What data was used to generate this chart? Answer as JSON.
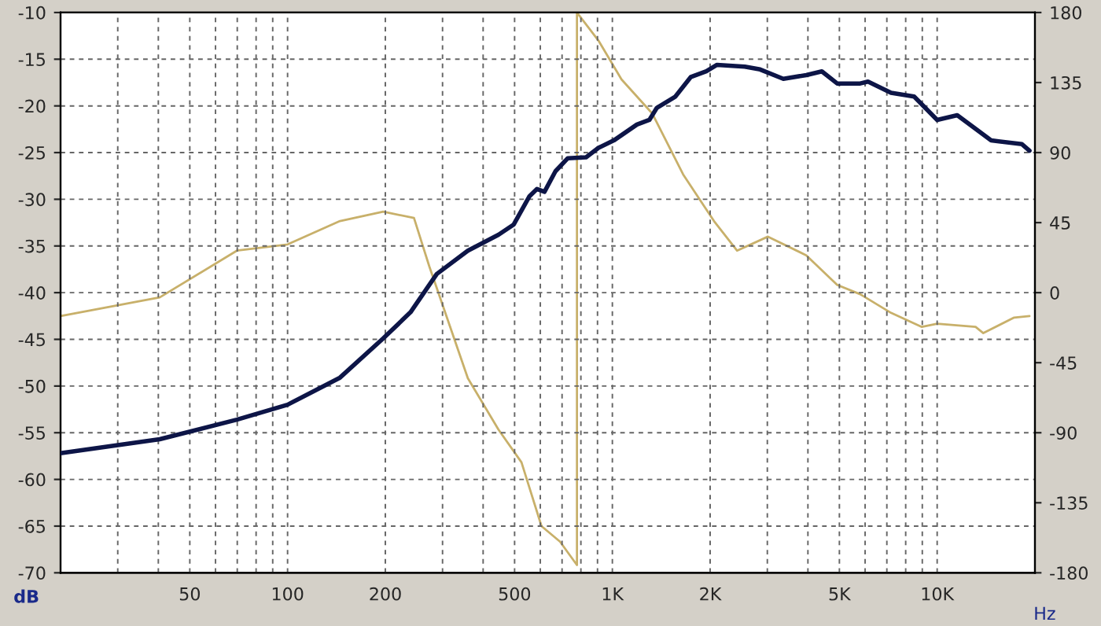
{
  "chart_data": {
    "type": "line",
    "xlabel": "Hz",
    "ylabel": "dB",
    "log": "x",
    "grid": true,
    "marker": "none",
    "line_style": "solid",
    "xlim": [
      20,
      20000
    ],
    "ylim": [
      -70,
      -10
    ],
    "y2lim": [
      -180,
      180
    ],
    "xticks": [
      {
        "value": 30,
        "label": null
      },
      {
        "value": 40,
        "label": null
      },
      50,
      {
        "value": 60,
        "label": null
      },
      {
        "value": 70,
        "label": null
      },
      {
        "value": 80,
        "label": null
      },
      {
        "value": 90,
        "label": null
      },
      100,
      200,
      {
        "value": 300,
        "label": null
      },
      {
        "value": 400,
        "label": null
      },
      500,
      {
        "value": 600,
        "label": null
      },
      {
        "value": 700,
        "label": null
      },
      {
        "value": 800,
        "label": null
      },
      {
        "value": 900,
        "label": null
      },
      {
        "value": 1000,
        "label": "1K"
      },
      {
        "value": 2000,
        "label": "2K"
      },
      {
        "value": 3000,
        "label": null
      },
      {
        "value": 4000,
        "label": null
      },
      {
        "value": 5000,
        "label": "5K"
      },
      {
        "value": 6000,
        "label": null
      },
      {
        "value": 7000,
        "label": null
      },
      {
        "value": 8000,
        "label": null
      },
      {
        "value": 9000,
        "label": null
      },
      {
        "value": 10000,
        "label": "10K"
      }
    ],
    "yticks": [
      -70,
      -65,
      -60,
      -55,
      -50,
      -45,
      -40,
      -35,
      -30,
      -25,
      -20,
      -15,
      -10
    ],
    "y2ticks": [
      -180,
      -135,
      -90,
      -45,
      0,
      45,
      90,
      135,
      180
    ],
    "series": [
      {
        "color": "#0d1547",
        "x": [
          20,
          40.4,
          69.8,
          100,
          145,
          197,
          239,
          288,
          359,
          446,
          497,
          555,
          586,
          618,
          668,
          729,
          830,
          906,
          1010,
          1190,
          1300,
          1371,
          1563,
          1745,
          1946,
          2100,
          2557,
          2851,
          3360,
          3954,
          4415,
          4922,
          5795,
          6124,
          7211,
          8492,
          10000,
          11530,
          14660,
          18240,
          19240
        ],
        "values": [
          -57.2,
          -55.7,
          -53.6,
          -52,
          -49.1,
          -44.9,
          -42.1,
          -38,
          -35.5,
          -33.8,
          -32.7,
          -29.7,
          -28.9,
          -29.2,
          -27,
          -25.6,
          -25.5,
          -24.5,
          -23.7,
          -22,
          -21.5,
          -20.2,
          -19,
          -16.9,
          -16.3,
          -15.6,
          -15.8,
          -16.1,
          -17.1,
          -16.7,
          -16.3,
          -17.6,
          -17.6,
          -17.4,
          -18.6,
          -19,
          -21.5,
          -21,
          -23.7,
          -24.1,
          -24.8
        ]
      },
      {
        "color": "#c8b06a",
        "axis": "y2",
        "x": [
          20,
          40.4,
          69.8,
          100,
          145,
          197,
          245,
          273,
          359,
          446,
          525,
          605,
          690,
          778,
          778,
          906,
          1067,
          1328,
          1651,
          2055,
          2420,
          3013,
          3954,
          4922,
          5795,
          7211,
          8970,
          10000,
          13130,
          13870,
          17260,
          19240
        ],
        "values": [
          -15,
          -3,
          27,
          31,
          46,
          52,
          48,
          17,
          -55,
          -88,
          -109,
          -150,
          -160,
          -175,
          180,
          162,
          137,
          115,
          76,
          46,
          27,
          36,
          24,
          5,
          -1,
          -13,
          -22,
          -20,
          -22,
          -26,
          -16,
          -15
        ]
      }
    ]
  }
}
